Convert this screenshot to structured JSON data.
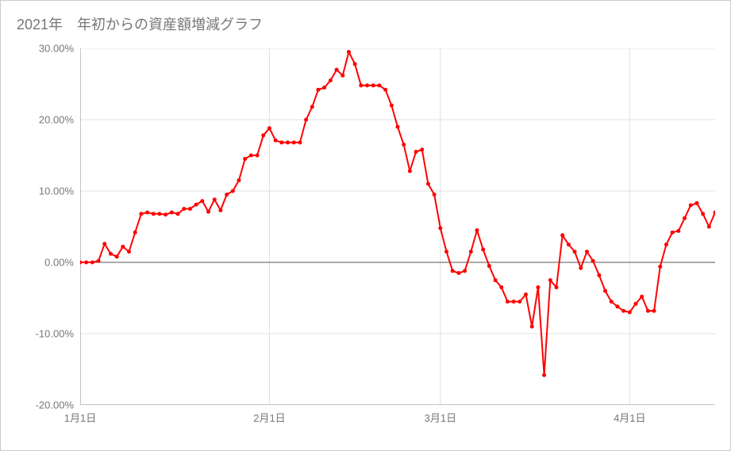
{
  "title": "2021年　年初からの資産額増減グラフ",
  "chart": {
    "type": "line",
    "background_color": "#ffffff",
    "border_color": "#cccccc",
    "grid_color": "#e0e0e0",
    "axis_color": "#888888",
    "zero_line_color": "#555555",
    "line_color": "#ff0000",
    "marker_color": "#ff0000",
    "line_width": 2,
    "marker_size": 2.5,
    "title_fontsize": 18,
    "title_color": "#777777",
    "label_fontsize": 13,
    "label_color": "#777777",
    "ylim": [
      -20,
      30
    ],
    "ytick_step": 10,
    "y_ticks": [
      -20,
      -10,
      0,
      10,
      20,
      30
    ],
    "y_tick_labels": [
      "-20.00%",
      "-10.00%",
      "0.00%",
      "10.00%",
      "20.00%",
      "30.00%"
    ],
    "x_ticks": [
      0,
      31,
      59,
      90
    ],
    "x_tick_labels": [
      "1月1日",
      "2月1日",
      "3月1日",
      "4月1日"
    ],
    "x_count": 105,
    "values": [
      0.0,
      0.0,
      0.0,
      0.2,
      2.6,
      1.2,
      0.8,
      2.2,
      1.5,
      4.2,
      6.8,
      7.0,
      6.8,
      6.8,
      6.7,
      7.0,
      6.8,
      7.5,
      7.5,
      8.1,
      8.6,
      7.1,
      8.8,
      7.3,
      9.5,
      10.0,
      11.5,
      14.5,
      15.0,
      15.0,
      17.8,
      18.8,
      17.1,
      16.8,
      16.8,
      16.8,
      16.8,
      20.0,
      21.8,
      24.2,
      24.5,
      25.5,
      27.0,
      26.2,
      29.5,
      27.8,
      24.8,
      24.8,
      24.8,
      24.8,
      24.2,
      22.0,
      19.0,
      16.5,
      12.8,
      15.5,
      15.8,
      11.0,
      9.5,
      4.8,
      1.5,
      -1.2,
      -1.5,
      -1.2,
      1.5,
      4.5,
      1.8,
      -0.5,
      -2.5,
      -3.5,
      -5.5,
      -5.5,
      -5.5,
      -4.5,
      -9.0,
      -3.5,
      -15.8,
      -2.5,
      -3.5,
      3.8,
      2.5,
      1.5,
      -0.8,
      1.5,
      0.2,
      -1.8,
      -4.0,
      -5.5,
      -6.2,
      -6.8,
      -7.0,
      -5.8,
      -4.8,
      -6.8,
      -6.8,
      -0.6,
      2.5,
      4.2,
      4.4,
      6.2,
      8.0,
      8.3,
      6.8,
      5.0,
      7.0
    ]
  }
}
